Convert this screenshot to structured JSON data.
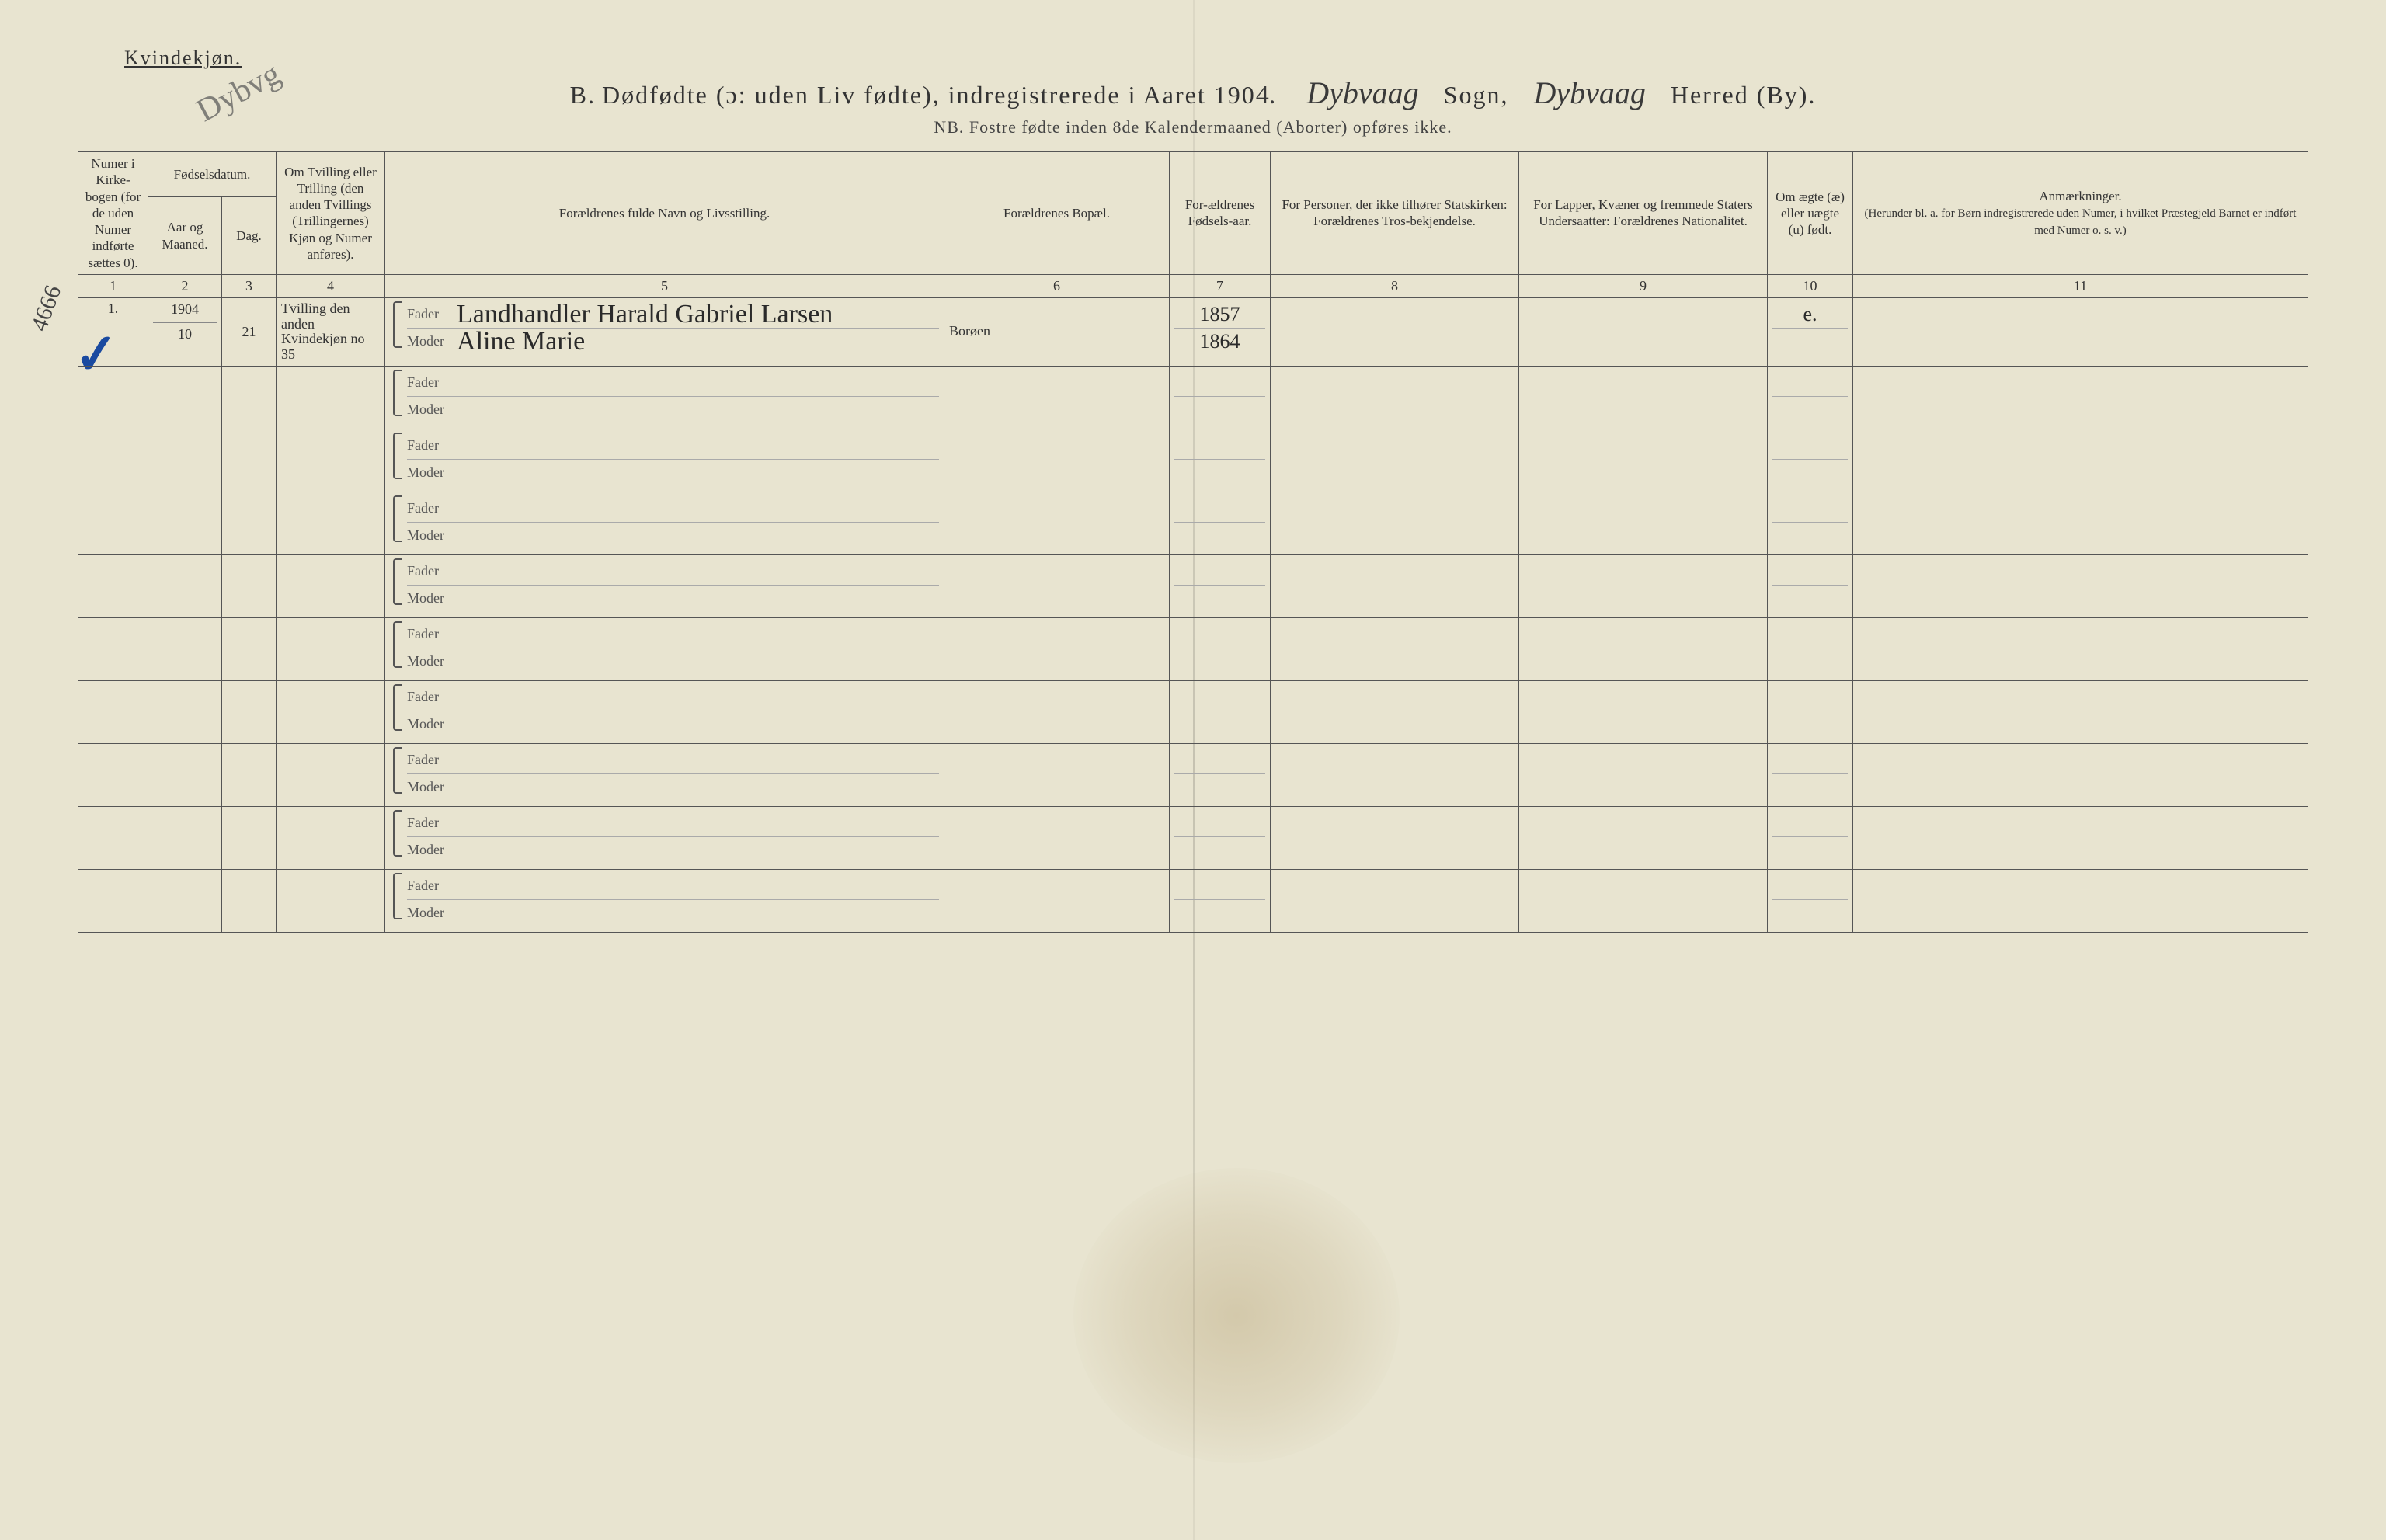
{
  "header": {
    "gender": "Kvindekjøn.",
    "section_letter": "B.",
    "title_main": "Dødfødte (ɔ: uden Liv fødte), indregistrerede i Aaret 190",
    "year_suffix": "4.",
    "sogn_hw": "Dybvaag",
    "sogn_label": "Sogn,",
    "herred_hw": "Dybvaag",
    "herred_label": "Herred (By).",
    "nb": "NB.  Fostre fødte inden 8de Kalendermaaned (Aborter) opføres ikke.",
    "stamp": "Dybvg"
  },
  "columns": {
    "c1": "Numer i Kirke-bogen (for de uden Numer indførte sættes 0).",
    "c2_group": "Fødselsdatum.",
    "c2a": "Aar og Maaned.",
    "c2b": "Dag.",
    "c4": "Om Tvilling eller Trilling (den anden Tvillings (Trillingernes) Kjøn og Numer anføres).",
    "c5": "Forældrenes fulde Navn og Livsstilling.",
    "c6": "Forældrenes Bopæl.",
    "c7": "For-ældrenes Fødsels-aar.",
    "c8": "For Personer, der ikke tilhører Statskirken: Forældrenes Tros-bekjendelse.",
    "c9": "For Lapper, Kvæner og fremmede Staters Undersaatter: Forældrenes Nationalitet.",
    "c10": "Om ægte (æ) eller uægte (u) født.",
    "c11": "Anmærkninger.",
    "c11_sub": "(Herunder bl. a. for Børn indregistrerede uden Numer, i hvilket Præstegjeld Barnet er indført med Numer o. s. v.)",
    "labels": {
      "fader": "Fader",
      "moder": "Moder"
    },
    "nums": [
      "1",
      "2",
      "3",
      "4",
      "5",
      "6",
      "7",
      "8",
      "9",
      "10",
      "11"
    ]
  },
  "margin": {
    "note": "4666",
    "check": "✓"
  },
  "rows": [
    {
      "num": "1.",
      "year_month": "1904\n10",
      "day": "21",
      "twin": "Tvilling den anden Kvindekjøn no 35",
      "father": "Landhandler Harald Gabriel Larsen",
      "mother": "Aline Marie",
      "residence": "Borøen",
      "father_birth": "1857",
      "mother_birth": "1864",
      "col8": "",
      "col9": "",
      "legit": "e.",
      "remarks": ""
    },
    {
      "num": "",
      "year_month": "",
      "day": "",
      "twin": "",
      "father": "",
      "mother": "",
      "residence": "",
      "father_birth": "",
      "mother_birth": "",
      "col8": "",
      "col9": "",
      "legit": "",
      "remarks": ""
    },
    {
      "num": "",
      "year_month": "",
      "day": "",
      "twin": "",
      "father": "",
      "mother": "",
      "residence": "",
      "father_birth": "",
      "mother_birth": "",
      "col8": "",
      "col9": "",
      "legit": "",
      "remarks": ""
    },
    {
      "num": "",
      "year_month": "",
      "day": "",
      "twin": "",
      "father": "",
      "mother": "",
      "residence": "",
      "father_birth": "",
      "mother_birth": "",
      "col8": "",
      "col9": "",
      "legit": "",
      "remarks": ""
    },
    {
      "num": "",
      "year_month": "",
      "day": "",
      "twin": "",
      "father": "",
      "mother": "",
      "residence": "",
      "father_birth": "",
      "mother_birth": "",
      "col8": "",
      "col9": "",
      "legit": "",
      "remarks": ""
    },
    {
      "num": "",
      "year_month": "",
      "day": "",
      "twin": "",
      "father": "",
      "mother": "",
      "residence": "",
      "father_birth": "",
      "mother_birth": "",
      "col8": "",
      "col9": "",
      "legit": "",
      "remarks": ""
    },
    {
      "num": "",
      "year_month": "",
      "day": "",
      "twin": "",
      "father": "",
      "mother": "",
      "residence": "",
      "father_birth": "",
      "mother_birth": "",
      "col8": "",
      "col9": "",
      "legit": "",
      "remarks": ""
    },
    {
      "num": "",
      "year_month": "",
      "day": "",
      "twin": "",
      "father": "",
      "mother": "",
      "residence": "",
      "father_birth": "",
      "mother_birth": "",
      "col8": "",
      "col9": "",
      "legit": "",
      "remarks": ""
    },
    {
      "num": "",
      "year_month": "",
      "day": "",
      "twin": "",
      "father": "",
      "mother": "",
      "residence": "",
      "father_birth": "",
      "mother_birth": "",
      "col8": "",
      "col9": "",
      "legit": "",
      "remarks": ""
    },
    {
      "num": "",
      "year_month": "",
      "day": "",
      "twin": "",
      "father": "",
      "mother": "",
      "residence": "",
      "father_birth": "",
      "mother_birth": "",
      "col8": "",
      "col9": "",
      "legit": "",
      "remarks": ""
    }
  ],
  "style": {
    "paper_bg": "#e8e4d0",
    "ink": "#333333",
    "rule": "#555555",
    "hw_color": "#2a2a2a",
    "check_color": "#1a4aa0"
  }
}
